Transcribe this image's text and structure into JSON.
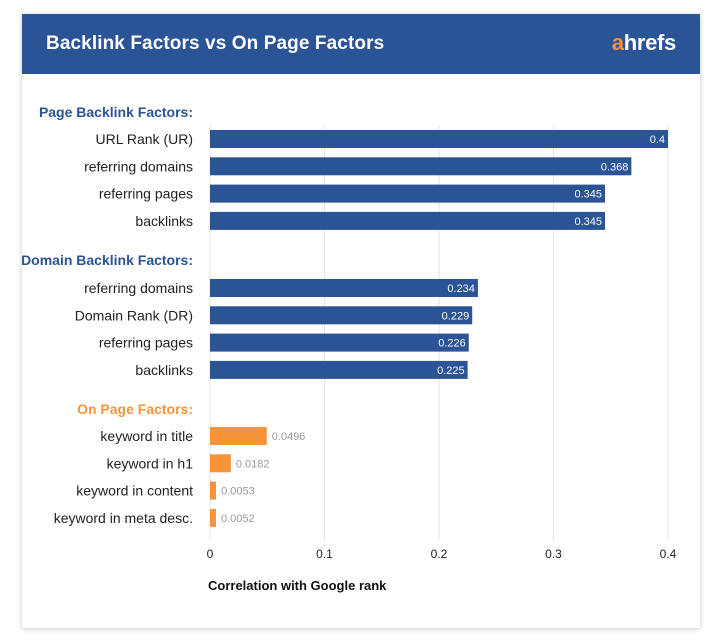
{
  "header": {
    "title": "Backlink Factors vs On Page Factors",
    "logo_accent": "a",
    "logo_rest": "hrefs"
  },
  "colors": {
    "header_bg": "#2b5497",
    "backlink_bar": "#2b5497",
    "onpage_bar": "#f5943a"
  },
  "chart_data": {
    "type": "bar",
    "orientation": "horizontal",
    "xlabel": "Correlation with Google rank",
    "xlim": [
      0,
      0.4
    ],
    "xticks": [
      "0",
      "0.1",
      "0.2",
      "0.3",
      "0.4"
    ],
    "grid": true,
    "groups": [
      {
        "name": "Page Backlink Factors:",
        "color": "#2b5497",
        "items": [
          {
            "label": "URL Rank (UR)",
            "value": 0.4,
            "value_label": "0.4"
          },
          {
            "label": "referring domains",
            "value": 0.368,
            "value_label": "0.368"
          },
          {
            "label": "referring pages",
            "value": 0.345,
            "value_label": "0.345"
          },
          {
            "label": "backlinks",
            "value": 0.345,
            "value_label": "0.345"
          }
        ]
      },
      {
        "name": "Domain Backlink Factors:",
        "color": "#2b5497",
        "items": [
          {
            "label": "referring domains",
            "value": 0.234,
            "value_label": "0.234"
          },
          {
            "label": "Domain Rank (DR)",
            "value": 0.229,
            "value_label": "0.229"
          },
          {
            "label": "referring pages",
            "value": 0.226,
            "value_label": "0.226"
          },
          {
            "label": "backlinks",
            "value": 0.225,
            "value_label": "0.225"
          }
        ]
      },
      {
        "name": "On Page Factors:",
        "color": "#f5943a",
        "items": [
          {
            "label": "keyword in title",
            "value": 0.0496,
            "value_label": "0.0496"
          },
          {
            "label": "keyword in h1",
            "value": 0.0182,
            "value_label": "0.0182"
          },
          {
            "label": "keyword in content",
            "value": 0.0053,
            "value_label": "0.0053"
          },
          {
            "label": "keyword in meta desc.",
            "value": 0.0052,
            "value_label": "0.0052"
          }
        ]
      }
    ]
  }
}
